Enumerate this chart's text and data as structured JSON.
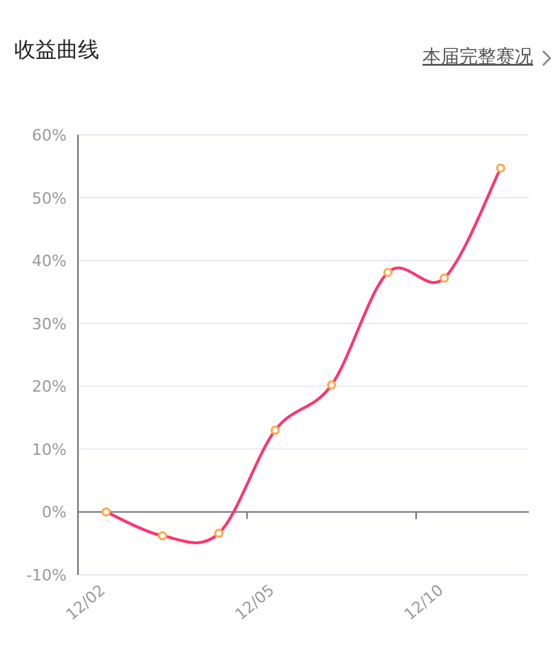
{
  "chart_data": {
    "type": "line",
    "title": "收益曲线",
    "annotations": [
      "本届完整赛况"
    ],
    "categories": [
      "12/02",
      null,
      null,
      "12/05",
      null,
      null,
      "12/10",
      null
    ],
    "series": [
      {
        "color": "#ff3370",
        "values": [
          0,
          -3.8,
          -3.4,
          13.0,
          20.2,
          38.1,
          37.2,
          54.7
        ]
      }
    ],
    "ylim": [
      -10,
      60
    ],
    "yticks": [
      {
        "value": -10,
        "label": "-10%"
      },
      {
        "value": 0,
        "label": "0%"
      },
      {
        "value": 10,
        "label": "10%"
      },
      {
        "value": 20,
        "label": "20%"
      },
      {
        "value": 30,
        "label": "30%"
      },
      {
        "value": 40,
        "label": "40%"
      },
      {
        "value": 50,
        "label": "50%"
      },
      {
        "value": 60,
        "label": "60%"
      }
    ],
    "grid": "y",
    "marker": "circle",
    "line_style": "solid"
  }
}
